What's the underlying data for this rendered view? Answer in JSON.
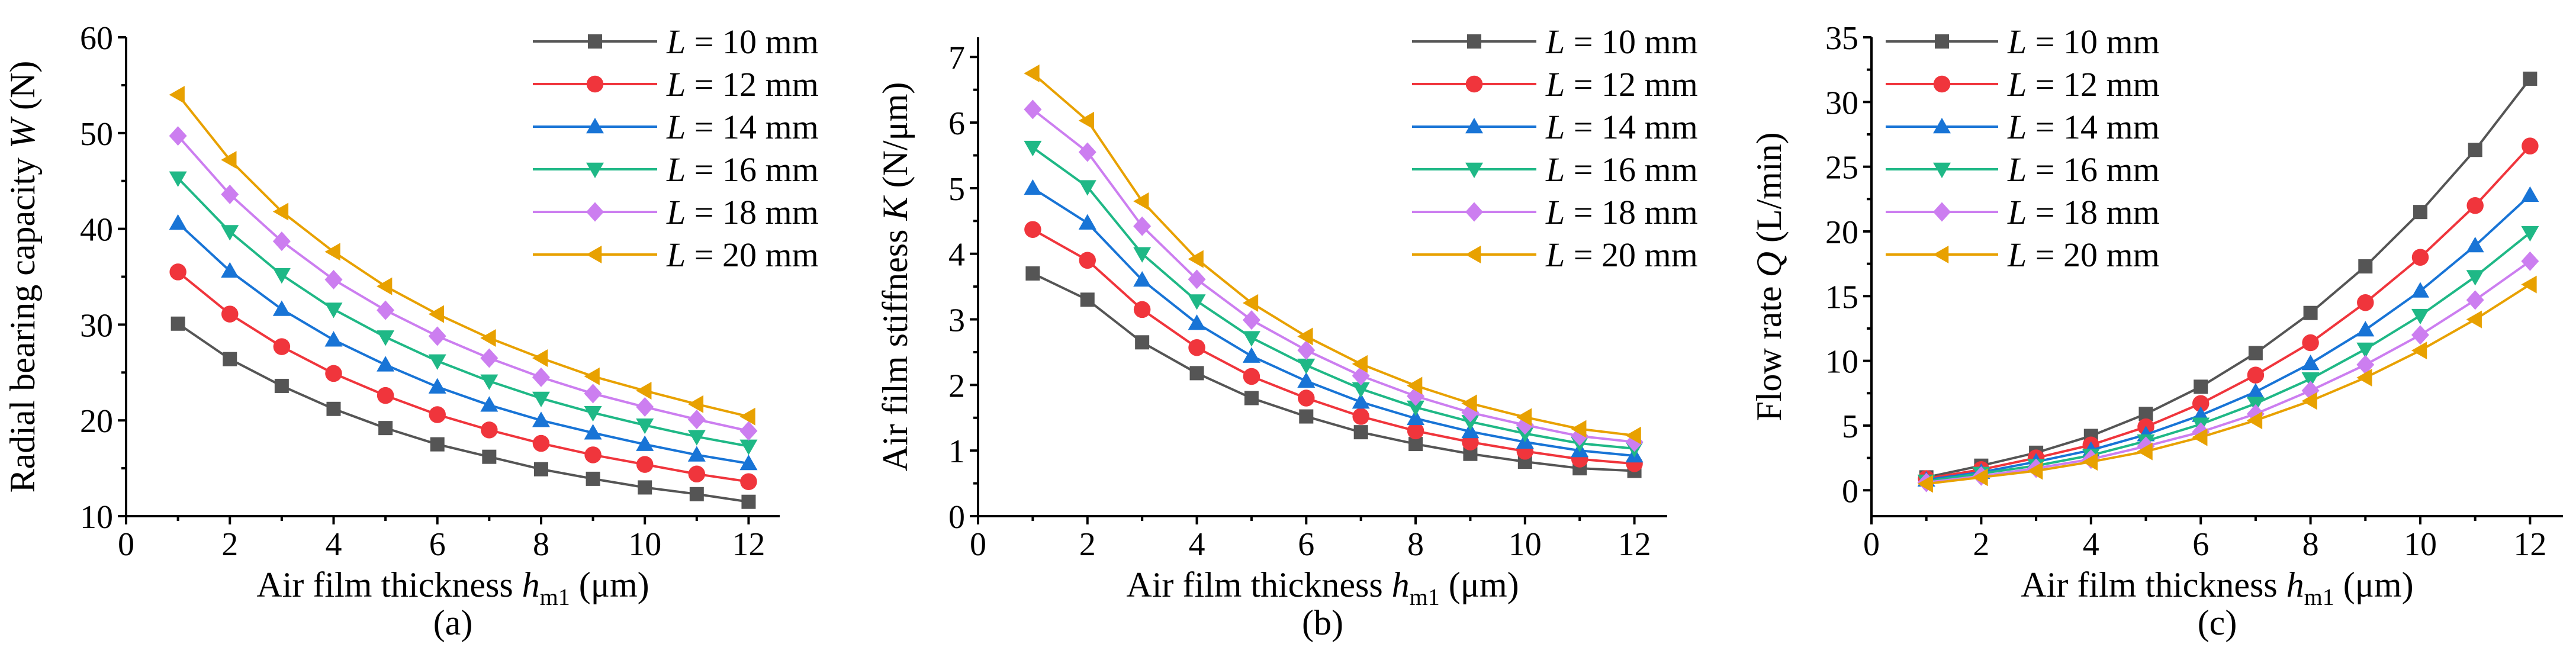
{
  "figure": {
    "captions": [
      "(a)",
      "(b)",
      "(c)"
    ]
  },
  "series_style": [
    {
      "color": "#555555",
      "marker": "square"
    },
    {
      "color": "#f0353c",
      "marker": "circle"
    },
    {
      "color": "#1874d6",
      "marker": "triangle-up"
    },
    {
      "color": "#1fb886",
      "marker": "triangle-down"
    },
    {
      "color": "#cc7ef0",
      "marker": "diamond"
    },
    {
      "color": "#e8a100",
      "marker": "triangle-left"
    }
  ],
  "chart_data": [
    {
      "type": "line",
      "caption": "(a)",
      "xlabel": "Air film thickness h_m1 (μm)",
      "xlabel_parts": {
        "pre": "Air film thickness ",
        "var": "h",
        "sub": "m1",
        "post": " (μm)"
      },
      "ylabel": "Radial bearing capacity W (N)",
      "ylabel_parts": {
        "pre": "Radial bearing capacity ",
        "var": "W",
        "post": " (N)"
      },
      "xlim": [
        0,
        12.6
      ],
      "ylim": [
        10,
        60
      ],
      "xticks": [
        0,
        2,
        4,
        6,
        8,
        10,
        12
      ],
      "yticks": [
        10,
        20,
        30,
        40,
        50,
        60
      ],
      "legend_position": "top-right",
      "x": [
        1,
        2,
        3,
        4,
        5,
        6,
        7,
        8,
        9,
        10,
        11,
        12
      ],
      "series": [
        {
          "name": "L = 10 mm",
          "legend_var": "L",
          "legend_value": " = 10 mm",
          "values": [
            30.1,
            26.4,
            23.6,
            21.2,
            19.2,
            17.5,
            16.2,
            14.9,
            13.9,
            13.0,
            12.3,
            11.5
          ]
        },
        {
          "name": "L = 12 mm",
          "legend_var": "L",
          "legend_value": " = 12 mm",
          "values": [
            35.5,
            31.1,
            27.7,
            24.9,
            22.6,
            20.6,
            19.0,
            17.6,
            16.4,
            15.4,
            14.4,
            13.6
          ]
        },
        {
          "name": "L = 14 mm",
          "legend_var": "L",
          "legend_value": " = 14 mm",
          "values": [
            40.6,
            35.6,
            31.6,
            28.4,
            25.8,
            23.5,
            21.6,
            20.0,
            18.7,
            17.5,
            16.4,
            15.5
          ]
        },
        {
          "name": "L = 16 mm",
          "legend_var": "L",
          "legend_value": " = 16 mm",
          "values": [
            45.3,
            39.7,
            35.2,
            31.6,
            28.7,
            26.2,
            24.1,
            22.3,
            20.8,
            19.5,
            18.3,
            17.3
          ]
        },
        {
          "name": "L = 18 mm",
          "legend_var": "L",
          "legend_value": " = 18 mm",
          "values": [
            49.7,
            43.6,
            38.7,
            34.7,
            31.5,
            28.8,
            26.5,
            24.5,
            22.8,
            21.4,
            20.1,
            18.9
          ]
        },
        {
          "name": "L = 20 mm",
          "legend_var": "L",
          "legend_value": " = 20 mm",
          "values": [
            54.0,
            47.2,
            41.8,
            37.6,
            34.0,
            31.1,
            28.6,
            26.5,
            24.6,
            23.1,
            21.7,
            20.4
          ]
        }
      ]
    },
    {
      "type": "line",
      "caption": "(b)",
      "xlabel": "Air film thickness h_m1 (μm)",
      "xlabel_parts": {
        "pre": "Air film thickness ",
        "var": "h",
        "sub": "m1",
        "post": " (μm)"
      },
      "ylabel": "Air film stiffness K (N/μm)",
      "ylabel_parts": {
        "pre": "Air film stiffness ",
        "var": "K",
        "post": " (N/μm)"
      },
      "xlim": [
        0,
        12.6
      ],
      "ylim": [
        0,
        7.3
      ],
      "xticks": [
        0,
        2,
        4,
        6,
        8,
        10,
        12
      ],
      "yticks": [
        0,
        1,
        2,
        3,
        4,
        5,
        6,
        7
      ],
      "legend_position": "top-right",
      "x": [
        1,
        2,
        3,
        4,
        5,
        6,
        7,
        8,
        9,
        10,
        11,
        12
      ],
      "series": [
        {
          "name": "L = 10 mm",
          "legend_var": "L",
          "legend_value": " = 10 mm",
          "values": [
            3.7,
            3.3,
            2.65,
            2.18,
            1.8,
            1.52,
            1.28,
            1.1,
            0.95,
            0.83,
            0.73,
            0.69
          ]
        },
        {
          "name": "L = 12 mm",
          "legend_var": "L",
          "legend_value": " = 12 mm",
          "values": [
            4.37,
            3.9,
            3.15,
            2.57,
            2.13,
            1.8,
            1.52,
            1.3,
            1.13,
            0.99,
            0.87,
            0.8
          ]
        },
        {
          "name": "L = 14 mm",
          "legend_var": "L",
          "legend_value": " = 14 mm",
          "values": [
            5.0,
            4.47,
            3.6,
            2.94,
            2.44,
            2.06,
            1.74,
            1.49,
            1.29,
            1.13,
            1.0,
            0.92
          ]
        },
        {
          "name": "L = 16 mm",
          "legend_var": "L",
          "legend_value": " = 16 mm",
          "values": [
            5.62,
            5.02,
            4.0,
            3.28,
            2.72,
            2.3,
            1.94,
            1.66,
            1.44,
            1.26,
            1.11,
            1.03
          ]
        },
        {
          "name": "L = 18 mm",
          "legend_var": "L",
          "legend_value": " = 18 mm",
          "values": [
            6.2,
            5.55,
            4.42,
            3.61,
            2.99,
            2.53,
            2.14,
            1.83,
            1.58,
            1.39,
            1.22,
            1.13
          ]
        },
        {
          "name": "L = 20 mm",
          "legend_var": "L",
          "legend_value": " = 20 mm",
          "values": [
            6.75,
            6.03,
            4.8,
            3.92,
            3.25,
            2.74,
            2.32,
            1.99,
            1.72,
            1.51,
            1.33,
            1.23
          ]
        }
      ]
    },
    {
      "type": "line",
      "caption": "(c)",
      "xlabel": "Air film thickness h_m1 (μm)",
      "xlabel_parts": {
        "pre": "Air film thickness ",
        "var": "h",
        "sub": "m1",
        "post": " (μm)"
      },
      "ylabel": "Flow rate Q (L/min)",
      "ylabel_parts": {
        "pre": "Flow rate ",
        "var": "Q",
        "post": " (L/min)"
      },
      "xlim": [
        0,
        12.6
      ],
      "ylim": [
        -2,
        35
      ],
      "xticks": [
        0,
        2,
        4,
        6,
        8,
        10,
        12
      ],
      "yticks": [
        0,
        5,
        10,
        15,
        20,
        25,
        30,
        35
      ],
      "legend_position": "top-left",
      "x": [
        1,
        2,
        3,
        4,
        5,
        6,
        7,
        8,
        9,
        10,
        11,
        12
      ],
      "series": [
        {
          "name": "L = 10 mm",
          "legend_var": "L",
          "legend_value": " = 10 mm",
          "values": [
            1.0,
            1.9,
            2.9,
            4.2,
            5.9,
            8.0,
            10.6,
            13.7,
            17.3,
            21.5,
            26.3,
            31.8
          ]
        },
        {
          "name": "L = 12 mm",
          "legend_var": "L",
          "legend_value": " = 12 mm",
          "values": [
            0.9,
            1.6,
            2.5,
            3.5,
            4.9,
            6.7,
            8.9,
            11.4,
            14.5,
            18.0,
            22.0,
            26.6
          ]
        },
        {
          "name": "L = 14 mm",
          "legend_var": "L",
          "legend_value": " = 14 mm",
          "values": [
            0.8,
            1.4,
            2.2,
            3.1,
            4.3,
            5.8,
            7.6,
            9.8,
            12.4,
            15.4,
            18.9,
            22.8
          ]
        },
        {
          "name": "L = 16 mm",
          "legend_var": "L",
          "legend_value": " = 16 mm",
          "values": [
            0.7,
            1.3,
            1.9,
            2.7,
            3.8,
            5.1,
            6.7,
            8.6,
            10.9,
            13.5,
            16.5,
            19.9
          ]
        },
        {
          "name": "L = 18 mm",
          "legend_var": "L",
          "legend_value": " = 18 mm",
          "values": [
            0.6,
            1.1,
            1.7,
            2.4,
            3.4,
            4.5,
            5.9,
            7.7,
            9.7,
            12.0,
            14.7,
            17.7
          ]
        },
        {
          "name": "L = 20 mm",
          "legend_var": "L",
          "legend_value": " = 20 mm",
          "values": [
            0.5,
            1.0,
            1.5,
            2.2,
            3.0,
            4.1,
            5.4,
            6.9,
            8.7,
            10.8,
            13.2,
            15.9
          ]
        }
      ]
    }
  ]
}
